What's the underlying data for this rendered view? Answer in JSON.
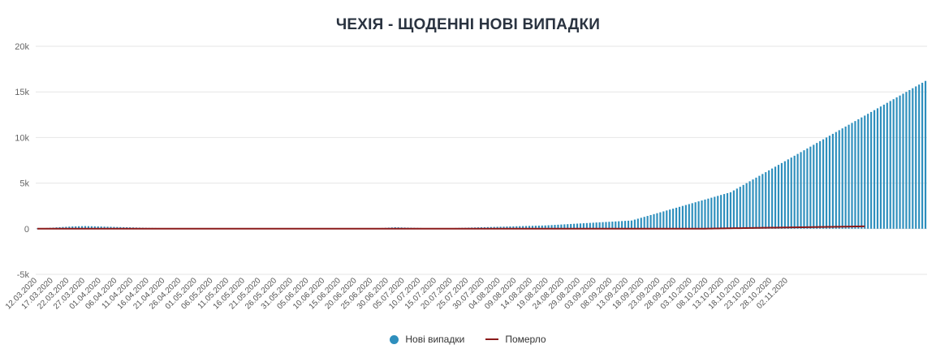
{
  "title": "ЧЕХІЯ - ЩОДЕННІ НОВІ ВИПАДКИ",
  "colors": {
    "cases": "#2e8fbd",
    "deaths": "#8b1a1a",
    "grid": "#e6e6e6",
    "title": "#2a3340"
  },
  "legend": {
    "cases_label": "Нові випадки",
    "deaths_label": "Померло"
  },
  "chart_data": {
    "type": "bar",
    "title": "ЧЕХІЯ - ЩОДЕННІ НОВІ ВИПАДКИ",
    "xlabel": "",
    "ylabel": "",
    "ylim": [
      -5000,
      20000
    ],
    "y_ticks": [
      "-5k",
      "0",
      "5k",
      "10k",
      "15k",
      "20k"
    ],
    "y_tick_values": [
      -5000,
      0,
      5000,
      10000,
      15000,
      20000
    ],
    "x_start": "12.03.2020",
    "x_tick_labels": [
      "12.03.2020",
      "17.03.2020",
      "22.03.2020",
      "27.03.2020",
      "01.04.2020",
      "06.04.2020",
      "11.04.2020",
      "16.04.2020",
      "21.04.2020",
      "26.04.2020",
      "01.05.2020",
      "06.05.2020",
      "11.05.2020",
      "16.05.2020",
      "21.05.2020",
      "26.05.2020",
      "31.05.2020",
      "05.06.2020",
      "10.06.2020",
      "15.06.2020",
      "20.06.2020",
      "25.06.2020",
      "30.06.2020",
      "05.07.2020",
      "10.07.2020",
      "15.07.2020",
      "20.07.2020",
      "25.07.2020",
      "30.07.2020",
      "04.08.2020",
      "09.08.2020",
      "14.08.2020",
      "19.08.2020",
      "24.08.2020",
      "29.08.2020",
      "03.09.2020",
      "08.09.2020",
      "13.09.2020",
      "18.09.2020",
      "23.09.2020",
      "28.09.2020",
      "03.10.2020",
      "08.10.2020",
      "13.10.2020",
      "18.10.2020",
      "23.10.2020",
      "28.10.2020",
      "02.11.2020"
    ],
    "grid": true,
    "legend_position": "bottom-center",
    "series": [
      {
        "name": "Нові випадки",
        "type": "bar",
        "values": [
          20,
          40,
          60,
          80,
          100,
          120,
          150,
          170,
          190,
          210,
          230,
          250,
          260,
          270,
          280,
          290,
          280,
          270,
          260,
          250,
          240,
          230,
          220,
          210,
          200,
          190,
          180,
          170,
          160,
          150,
          140,
          130,
          120,
          110,
          100,
          90,
          85,
          80,
          75,
          70,
          65,
          60,
          55,
          50,
          48,
          46,
          44,
          42,
          40,
          38,
          36,
          34,
          32,
          30,
          28,
          26,
          25,
          24,
          23,
          22,
          21,
          20,
          20,
          19,
          19,
          18,
          18,
          17,
          17,
          16,
          16,
          15,
          15,
          15,
          14,
          14,
          14,
          13,
          13,
          13,
          12,
          12,
          12,
          12,
          11,
          11,
          11,
          11,
          10,
          10,
          10,
          10,
          10,
          10,
          10,
          10,
          10,
          10,
          10,
          10,
          10,
          10,
          12,
          15,
          20,
          30,
          40,
          60,
          80,
          100,
          120,
          140,
          160,
          150,
          140,
          130,
          120,
          110,
          100,
          90,
          80,
          70,
          65,
          60,
          58,
          56,
          54,
          52,
          50,
          60,
          70,
          80,
          90,
          100,
          110,
          120,
          130,
          140,
          150,
          160,
          170,
          180,
          190,
          200,
          210,
          220,
          230,
          240,
          250,
          260,
          270,
          280,
          290,
          300,
          310,
          320,
          330,
          340,
          350,
          360,
          380,
          400,
          420,
          440,
          460,
          480,
          500,
          520,
          540,
          560,
          580,
          600,
          620,
          640,
          660,
          680,
          700,
          720,
          740,
          760,
          780,
          800,
          820,
          840,
          860,
          880,
          900,
          1000,
          1100,
          1200,
          1300,
          1400,
          1500,
          1600,
          1700,
          1800,
          1900,
          2000,
          2100,
          2200,
          2300,
          2400,
          2500,
          2600,
          2700,
          2800,
          2900,
          3000,
          3100,
          3200,
          3300,
          3400,
          3500,
          3600,
          3700,
          3800,
          3900,
          4000,
          4200,
          4400,
          4600,
          4800,
          5000,
          5200,
          5400,
          5600,
          5800,
          6000,
          6200,
          6400,
          6600,
          6800,
          7000,
          7200,
          7400,
          7600,
          7800,
          8000,
          8200,
          8400,
          8600,
          8800,
          9000,
          9200,
          9400,
          9600,
          9800,
          10000,
          10200,
          10400,
          10600,
          10800,
          11000,
          11200,
          11400,
          11600,
          11800,
          12000,
          12200,
          12400,
          12600,
          12800,
          13000,
          13200,
          13400,
          13600,
          13800,
          14000,
          14200,
          14400,
          14600,
          14800,
          15000,
          15200,
          15400,
          15600,
          15800,
          16000,
          16200
        ]
      },
      {
        "name": "Померло",
        "type": "line",
        "values": [
          0,
          0,
          0,
          0,
          0,
          0,
          0,
          0,
          0,
          0,
          0,
          0,
          0,
          0,
          0,
          0,
          0,
          0,
          0,
          0,
          0,
          0,
          0,
          0,
          0,
          0,
          0,
          0,
          0,
          0,
          0,
          0,
          0,
          0,
          0,
          0,
          0,
          0,
          0,
          0,
          0,
          0,
          0,
          0,
          0,
          0,
          0,
          0,
          0,
          0,
          0,
          0,
          0,
          0,
          0,
          0,
          0,
          0,
          0,
          0,
          0,
          0,
          0,
          0,
          0,
          0,
          0,
          0,
          0,
          0,
          0,
          0,
          0,
          0,
          0,
          0,
          0,
          0,
          0,
          0,
          0,
          0,
          0,
          0,
          0,
          0,
          0,
          0,
          0,
          0,
          0,
          0,
          0,
          0,
          0,
          0,
          0,
          0,
          0,
          0,
          0,
          0,
          0,
          0,
          0,
          0,
          0,
          0,
          0,
          0,
          0,
          0,
          0,
          0,
          0,
          0,
          0,
          0,
          0,
          0,
          0,
          0,
          0,
          0,
          0,
          0,
          0,
          0,
          0,
          0,
          0,
          0,
          0,
          0,
          0,
          0,
          0,
          0,
          0,
          0,
          0,
          0,
          0,
          0,
          0,
          0,
          0,
          0,
          0,
          0,
          0,
          0,
          0,
          0,
          0,
          0,
          0,
          0,
          0,
          0,
          0,
          0,
          0,
          0,
          0,
          0,
          0,
          0,
          0,
          0,
          0,
          0,
          0,
          0,
          0,
          0,
          0,
          0,
          0,
          0,
          0,
          0,
          0,
          0,
          0,
          0,
          0,
          0,
          0,
          0,
          0,
          0,
          0,
          0,
          0,
          0,
          0,
          0,
          0,
          0,
          0,
          0,
          0,
          0,
          0,
          0,
          0,
          0,
          5,
          10,
          15,
          20,
          25,
          30,
          35,
          40,
          45,
          50,
          55,
          60,
          65,
          70,
          75,
          80,
          85,
          90,
          95,
          100,
          105,
          110,
          115,
          120,
          125,
          130,
          135,
          140,
          145,
          150,
          155,
          160,
          165,
          170,
          175,
          180,
          185,
          190,
          195,
          200,
          205,
          210,
          215,
          220,
          225,
          230,
          235,
          240,
          245,
          250,
          255,
          260
        ]
      }
    ]
  }
}
